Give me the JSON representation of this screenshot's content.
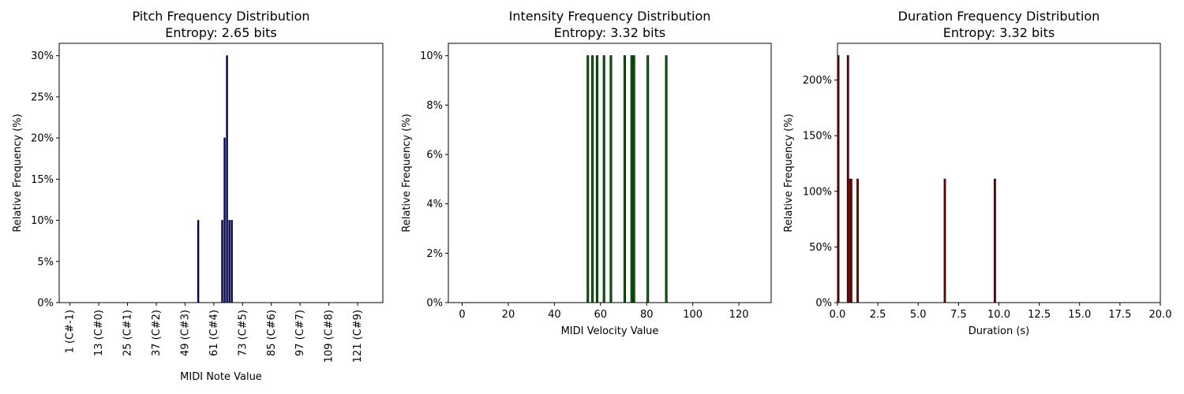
{
  "chart_data": [
    {
      "type": "bar",
      "title": "Pitch Frequency Distribution",
      "subtitle": "Entropy: 2.65 bits",
      "xlabel": "MIDI Note Value",
      "ylabel": "Relative Frequency (%)",
      "xlim": [
        -3.5,
        131.5
      ],
      "ylim": [
        0,
        31.5
      ],
      "xticks": [
        1,
        13,
        25,
        37,
        49,
        61,
        73,
        85,
        97,
        109,
        121
      ],
      "xtick_labels": [
        "1 (C#-1)",
        "13 (C#0)",
        "25 (C#1)",
        "37 (C#2)",
        "49 (C#3)",
        "61 (C#4)",
        "73 (C#5)",
        "85 (C#6)",
        "97 (C#7)",
        "109 (C#8)",
        "121 (C#9)"
      ],
      "yticks": [
        0,
        5,
        10,
        15,
        20,
        25,
        30
      ],
      "ytick_labels": [
        "0%",
        "5%",
        "10%",
        "15%",
        "20%",
        "25%",
        "30%"
      ],
      "x": [
        54.5,
        64.5,
        65.5,
        66.5,
        67.5,
        68.5
      ],
      "values": [
        10,
        10,
        20,
        30,
        10,
        10
      ],
      "color": "#0000cc",
      "grid": false
    },
    {
      "type": "bar",
      "title": "Intensity Frequency Distribution",
      "subtitle": "Entropy: 3.32 bits",
      "xlabel": "MIDI Velocity Value",
      "ylabel": "Relative Frequency (%)",
      "xlim": [
        -6,
        134
      ],
      "ylim": [
        0,
        10.5
      ],
      "xticks": [
        0,
        20,
        40,
        60,
        80,
        100,
        120
      ],
      "xtick_labels": [
        "0",
        "20",
        "40",
        "60",
        "80",
        "100",
        "120"
      ],
      "yticks": [
        0,
        2,
        4,
        6,
        8,
        10
      ],
      "ytick_labels": [
        "0%",
        "2%",
        "4%",
        "6%",
        "8%",
        "10%"
      ],
      "x": [
        54.5,
        56.5,
        58.5,
        61.5,
        64.5,
        70.5,
        73.5,
        74.5,
        80.5,
        88.5
      ],
      "values": [
        10,
        10,
        10,
        10,
        10,
        10,
        10,
        10,
        10,
        10
      ],
      "color": "#008000",
      "grid": false
    },
    {
      "type": "bar",
      "title": "Duration Frequency Distribution",
      "subtitle": "Entropy: 3.32 bits",
      "xlabel": "Duration (s)",
      "ylabel": "Relative Frequency (%)",
      "xlim": [
        0,
        20
      ],
      "ylim": [
        0,
        233
      ],
      "xticks": [
        0,
        2.5,
        5,
        7.5,
        10,
        12.5,
        15,
        17.5,
        20
      ],
      "xtick_labels": [
        "0.0",
        "2.5",
        "5.0",
        "7.5",
        "10.0",
        "12.5",
        "15.0",
        "17.5",
        "20.0"
      ],
      "yticks": [
        0,
        50,
        100,
        150,
        200
      ],
      "ytick_labels": [
        "0%",
        "50%",
        "100%",
        "150%",
        "200%"
      ],
      "x": [
        0.05,
        0.65,
        0.75,
        0.85,
        1.25,
        6.65,
        9.75
      ],
      "values": [
        222,
        222,
        111,
        111,
        111,
        111,
        111
      ],
      "color": "#aa0000",
      "grid": false
    }
  ]
}
